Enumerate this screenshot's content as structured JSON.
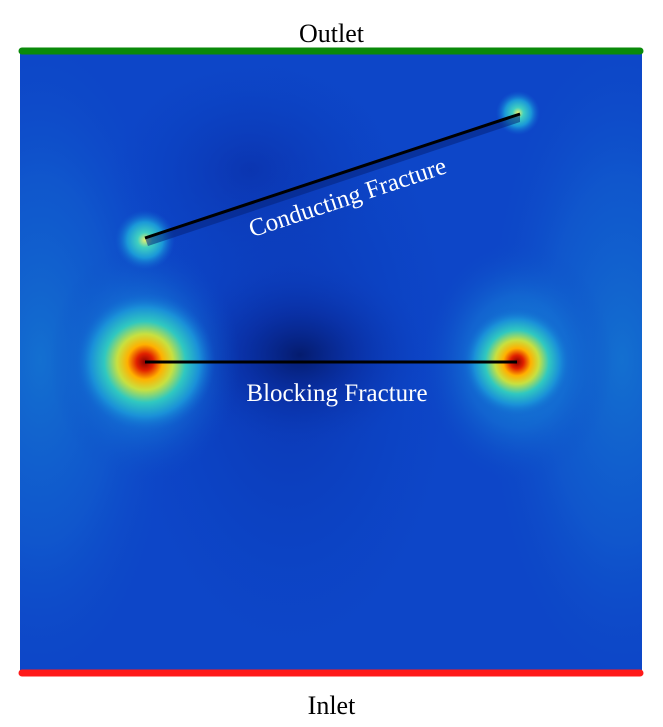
{
  "labels": {
    "outlet": "Outlet",
    "inlet": "Inlet",
    "conducting_fracture": "Conducting Fracture",
    "blocking_fracture": "Blocking Fracture"
  },
  "colors": {
    "outlet_boundary": "#0a8a0a",
    "inlet_boundary": "#ff1a1a",
    "field_background": "#0b3fbf",
    "fracture_line": "#000000"
  }
}
